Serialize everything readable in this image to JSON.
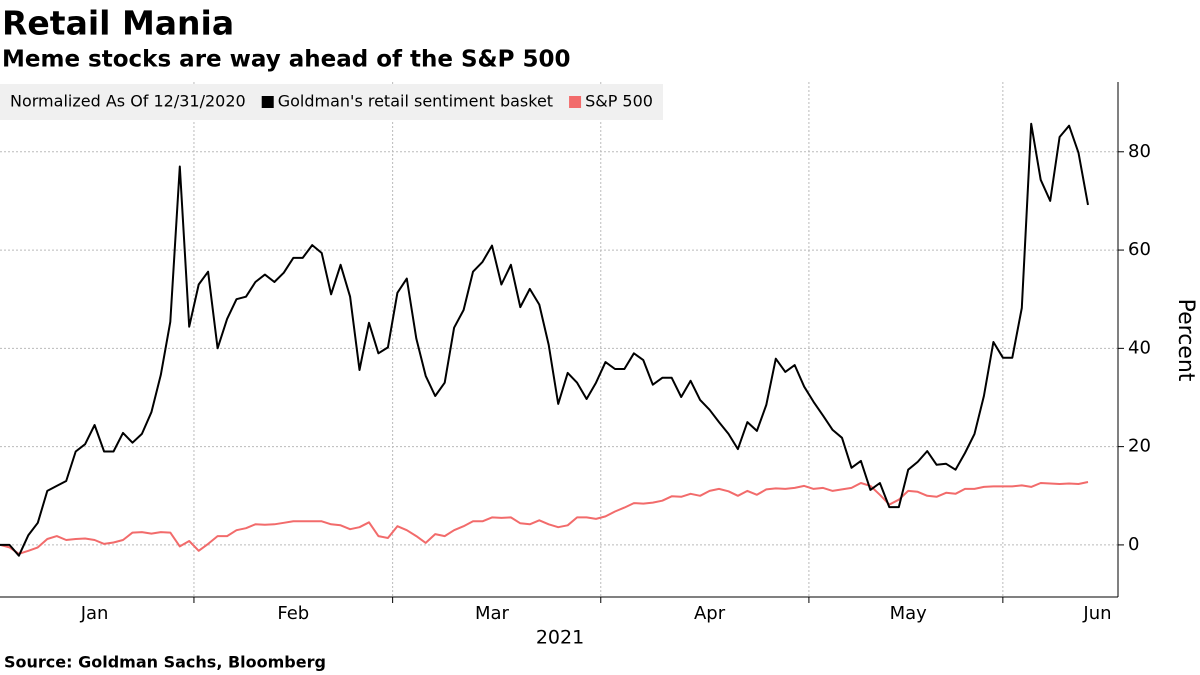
{
  "chart_data": {
    "type": "line",
    "title": "Retail Mania",
    "subtitle": "Meme stocks are way ahead of the S&P 500",
    "legend_title": "Normalized As Of 12/31/2020",
    "xlabel": "2021",
    "ylabel": "Percent",
    "source": "Source: Goldman Sachs, Bloomberg",
    "categories": [
      null,
      null,
      null,
      null,
      null,
      null,
      null,
      null,
      null,
      null,
      "Jan",
      null,
      null,
      null,
      null,
      null,
      null,
      null,
      null,
      null,
      null,
      null,
      null,
      null,
      null,
      null,
      null,
      null,
      null,
      null,
      null,
      "Feb",
      null,
      null,
      null,
      null,
      null,
      null,
      null,
      null,
      null,
      null,
      null,
      null,
      null,
      null,
      null,
      null,
      null,
      null,
      null,
      null,
      "Mar",
      null,
      null,
      null,
      null,
      null,
      null,
      null,
      null,
      null,
      null,
      null,
      null,
      null,
      null,
      null,
      null,
      null,
      null,
      null,
      null,
      null,
      null,
      "Apr",
      null,
      null,
      null,
      null,
      null,
      null,
      null,
      null,
      null,
      null,
      null,
      null,
      null,
      null,
      null,
      null,
      null,
      null,
      null,
      null,
      "May",
      null,
      null,
      null,
      null,
      null,
      null,
      null,
      null,
      null,
      null,
      null,
      null,
      null,
      null,
      null,
      null,
      null,
      null,
      null,
      "Jun"
    ],
    "series": [
      {
        "name": "Goldman's retail sentiment basket",
        "color": "#000000",
        "values": [
          0,
          0,
          -2.2,
          2,
          4.5,
          11,
          12,
          13,
          19,
          20.5,
          24.4,
          19,
          19,
          22.8,
          20.8,
          22.6,
          27,
          34.6,
          45.4,
          77,
          44.4,
          53,
          55.6,
          40,
          46,
          50,
          50.5,
          53.5,
          55,
          53.5,
          55.4,
          58.4,
          58.4,
          61,
          59.4,
          51,
          57,
          50.5,
          35.6,
          45.2,
          39,
          40.2,
          51.3,
          54.2,
          42,
          34.4,
          30.3,
          33,
          44.2,
          47.8,
          55.6,
          57.6,
          60.9,
          53,
          57,
          48.4,
          52.1,
          48.9,
          40.7,
          28.7,
          35,
          33,
          29.7,
          33,
          37.2,
          35.8,
          35.8,
          39,
          37.6,
          32.6,
          34,
          34,
          30.1,
          33.4,
          29.5,
          27.5,
          25,
          22.6,
          19.5,
          25,
          23.2,
          28.5,
          37.9,
          35.2,
          36.6,
          32.2,
          29.1,
          26.3,
          23.4,
          21.8,
          15.7,
          17.1,
          11.2,
          12.6,
          7.7,
          7.7,
          15.3,
          16.9,
          19.1,
          16.3,
          16.5,
          15.3,
          18.7,
          22.6,
          30.3,
          41.3,
          38.1,
          38.1,
          48.2,
          85.7,
          74.3,
          70,
          83,
          85.3,
          79.8,
          69.2,
          null
        ]
      },
      {
        "name": "S&P 500",
        "color": "#f26b6b",
        "values": [
          0,
          -0.5,
          -1.8,
          -1.2,
          -0.5,
          1.2,
          1.8,
          1.0,
          1.2,
          1.3,
          1.0,
          0.2,
          0.5,
          1.0,
          2.5,
          2.6,
          2.3,
          2.6,
          2.5,
          -0.3,
          0.8,
          -1.2,
          0.2,
          1.8,
          1.8,
          3.0,
          3.4,
          4.2,
          4.1,
          4.2,
          4.5,
          4.8,
          4.8,
          4.8,
          4.8,
          4.2,
          4.0,
          3.2,
          3.6,
          4.6,
          1.8,
          1.4,
          3.8,
          3.0,
          1.8,
          0.4,
          2.2,
          1.8,
          3.0,
          3.8,
          4.8,
          4.8,
          5.6,
          5.5,
          5.6,
          4.4,
          4.2,
          5.0,
          4.2,
          3.6,
          4.0,
          5.6,
          5.6,
          5.3,
          5.8,
          6.8,
          7.6,
          8.5,
          8.4,
          8.6,
          9.0,
          9.9,
          9.8,
          10.4,
          10.0,
          11.0,
          11.4,
          10.9,
          10.0,
          11.0,
          10.2,
          11.3,
          11.5,
          11.4,
          11.6,
          12.0,
          11.4,
          11.6,
          11.0,
          11.3,
          11.6,
          12.6,
          12.0,
          10.2,
          8.2,
          9.2,
          11.0,
          10.8,
          10.0,
          9.8,
          10.6,
          10.4,
          11.4,
          11.4,
          11.8,
          11.9,
          11.9,
          11.9,
          12.1,
          11.8,
          12.6,
          12.5,
          12.4,
          12.5,
          12.4,
          12.8,
          null
        ]
      }
    ],
    "ylim": [
      -10.6,
      94.2
    ],
    "yticks": [
      0,
      20,
      40,
      60,
      80
    ],
    "grid": true
  }
}
